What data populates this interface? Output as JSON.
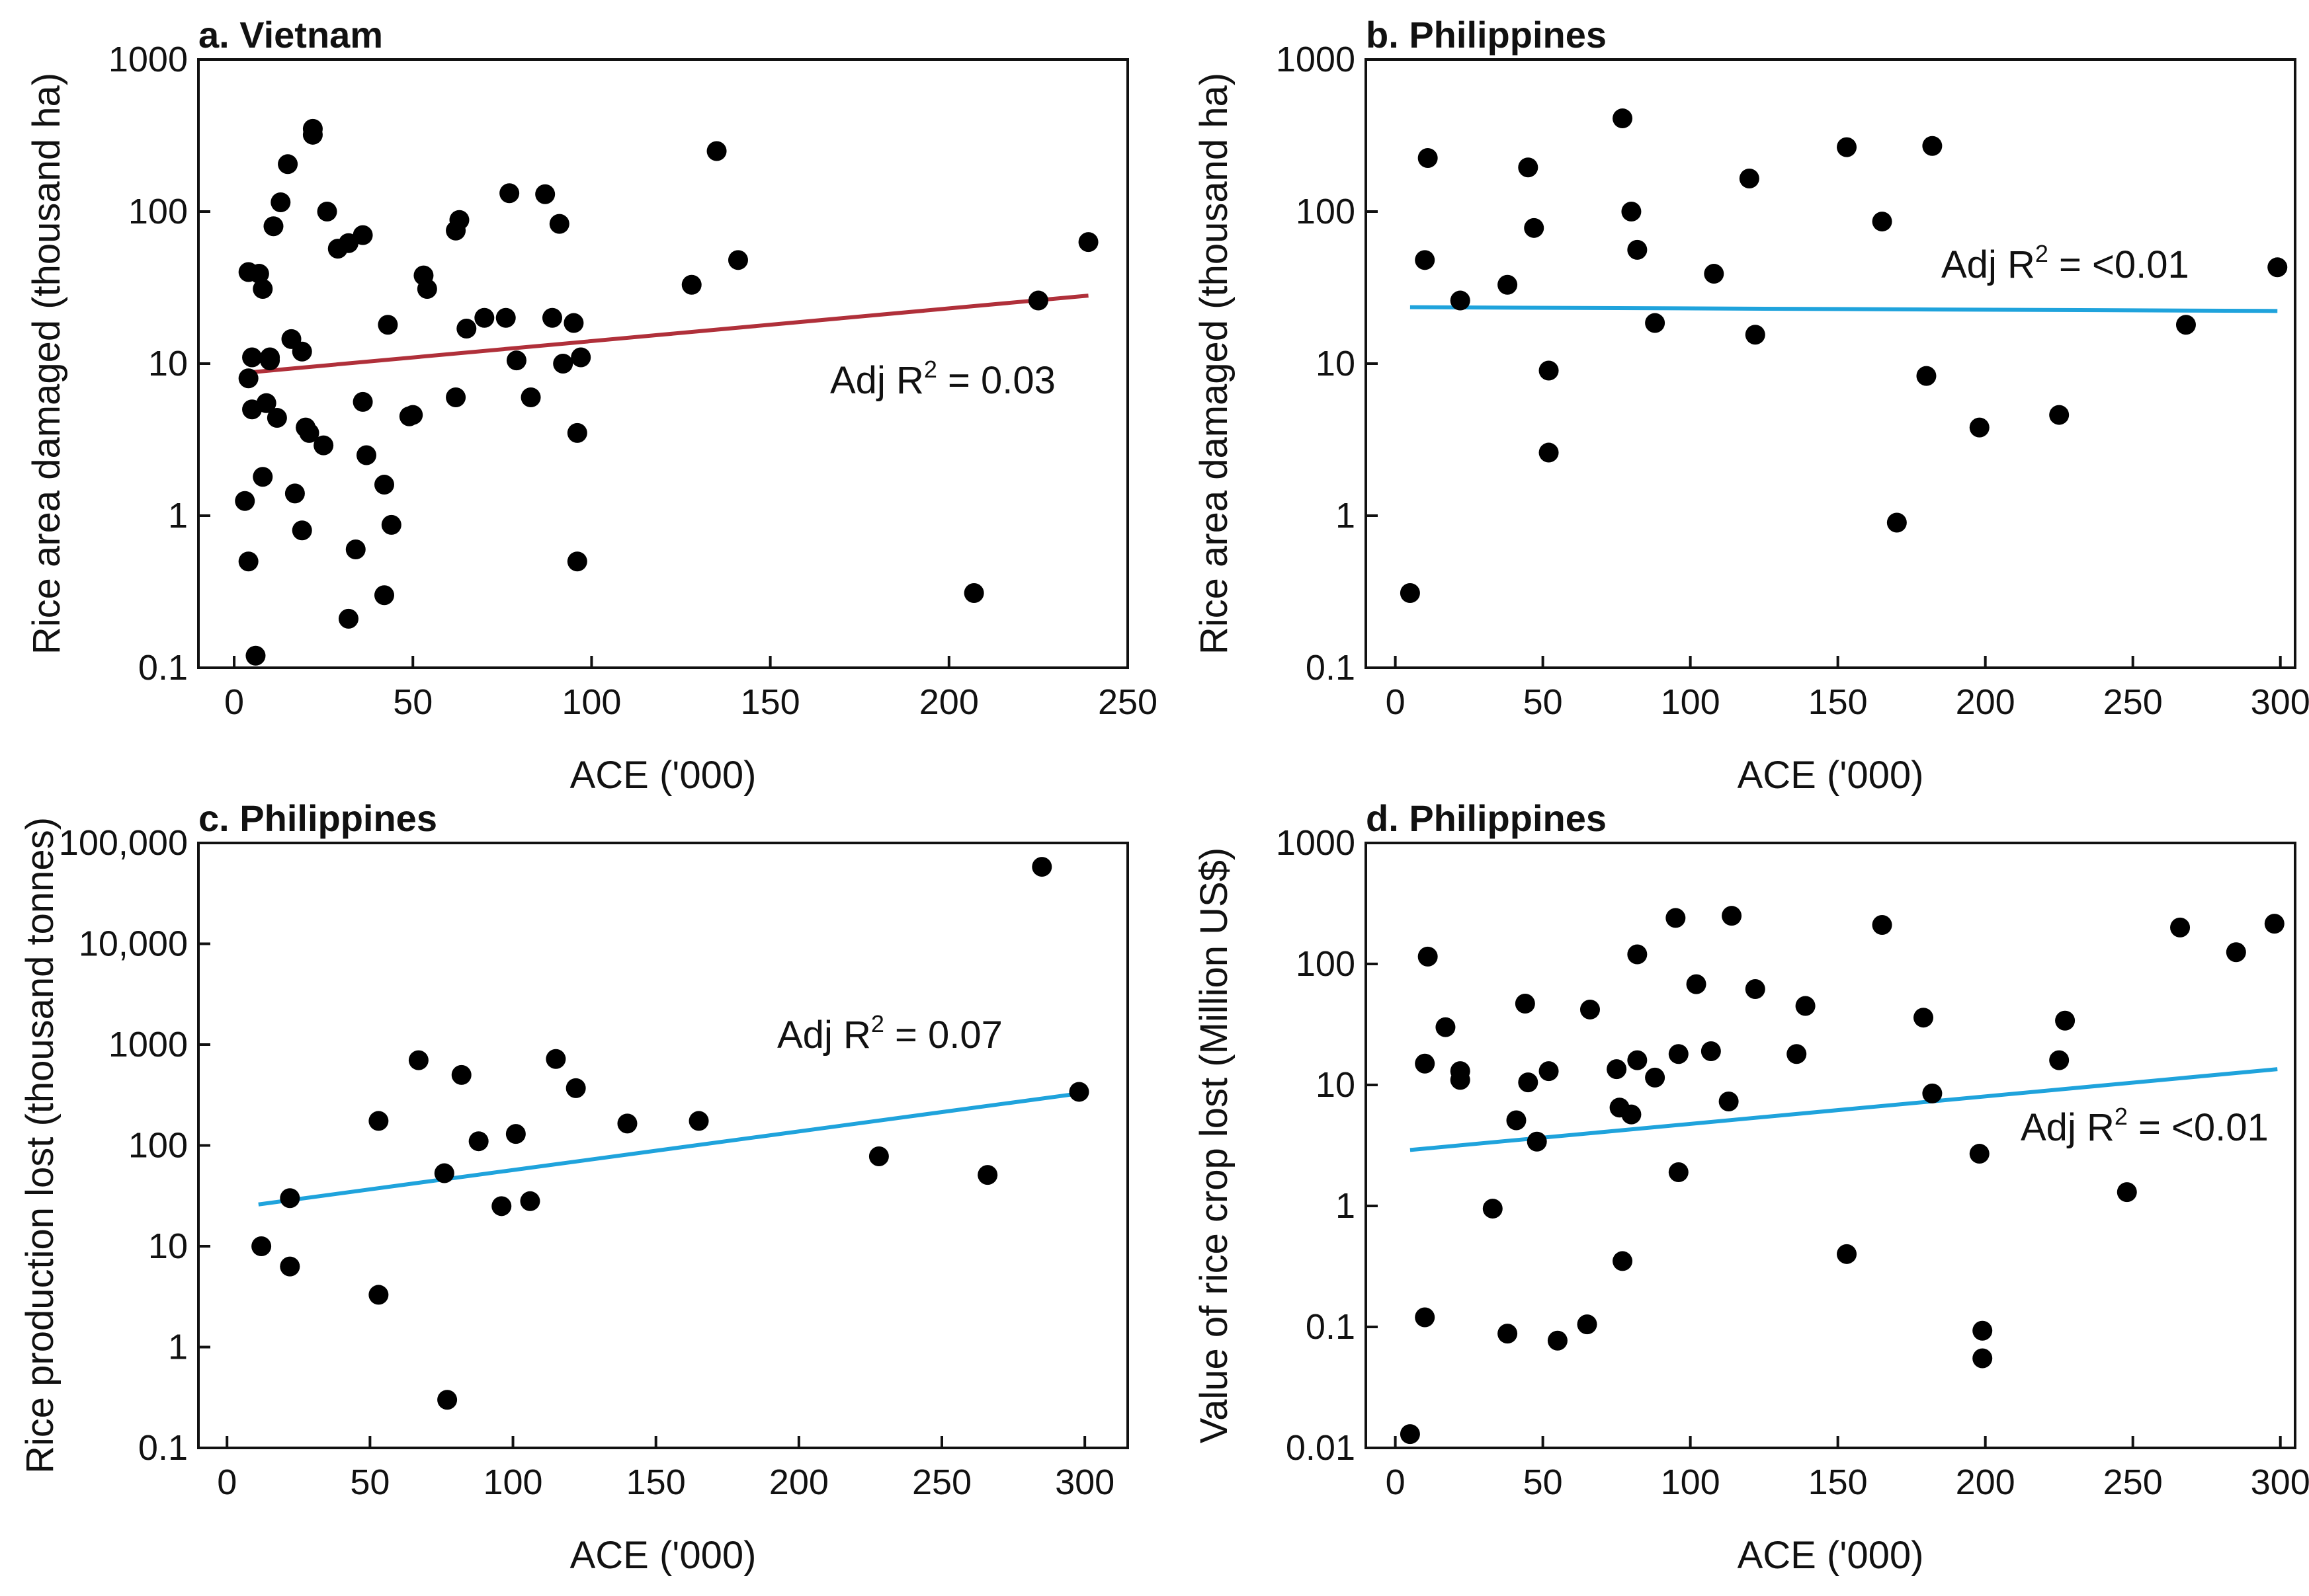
{
  "chart_data": [
    {
      "type": "scatter",
      "title": "a. Vietnam",
      "xlabel": "ACE ('000)",
      "ylabel": "Rice area damaged (thousand ha)",
      "xlim": [
        -10,
        250
      ],
      "ylim": [
        0.1,
        1000
      ],
      "yscale": "log",
      "xticks": [
        0,
        50,
        100,
        150,
        200,
        250
      ],
      "yticks": [
        0.1,
        1,
        10,
        100,
        1000
      ],
      "ytick_labels": [
        "0.1",
        "1",
        "10",
        "100",
        "1000"
      ],
      "annotation": {
        "text": "Adj R",
        "sup": "2",
        "suffix": " = 0.03"
      },
      "trend": {
        "color": "#b0303a",
        "x": [
          3,
          239
        ],
        "y": [
          8.7,
          28
        ]
      },
      "points": [
        [
          3,
          1.25
        ],
        [
          4,
          8
        ],
        [
          4,
          0.5
        ],
        [
          4,
          40
        ],
        [
          5,
          5
        ],
        [
          5,
          11
        ],
        [
          6,
          0.12
        ],
        [
          7,
          39
        ],
        [
          8,
          31
        ],
        [
          8,
          1.8
        ],
        [
          9,
          5.5
        ],
        [
          10,
          11
        ],
        [
          10,
          10.5
        ],
        [
          11,
          80
        ],
        [
          12,
          4.4
        ],
        [
          13,
          115
        ],
        [
          15,
          205
        ],
        [
          16,
          14.5
        ],
        [
          17,
          1.4
        ],
        [
          19,
          0.8
        ],
        [
          19,
          12
        ],
        [
          20,
          3.8
        ],
        [
          21,
          3.5
        ],
        [
          22,
          350
        ],
        [
          22,
          320
        ],
        [
          25,
          2.9
        ],
        [
          26,
          100
        ],
        [
          29,
          57
        ],
        [
          32,
          0.21
        ],
        [
          32,
          62
        ],
        [
          34,
          0.6
        ],
        [
          36,
          70
        ],
        [
          36,
          5.6
        ],
        [
          37,
          2.5
        ],
        [
          42,
          1.6
        ],
        [
          42,
          0.3
        ],
        [
          43,
          18
        ],
        [
          44,
          0.87
        ],
        [
          49,
          4.5
        ],
        [
          50,
          4.6
        ],
        [
          53,
          38
        ],
        [
          54,
          31
        ],
        [
          62,
          6
        ],
        [
          62,
          75
        ],
        [
          63,
          88
        ],
        [
          65,
          17
        ],
        [
          70,
          20
        ],
        [
          76,
          20
        ],
        [
          77,
          132
        ],
        [
          79,
          10.5
        ],
        [
          83,
          6
        ],
        [
          87,
          130
        ],
        [
          89,
          20
        ],
        [
          91,
          83
        ],
        [
          92,
          10
        ],
        [
          95,
          18.5
        ],
        [
          96,
          3.5
        ],
        [
          96,
          0.5
        ],
        [
          97,
          11
        ],
        [
          128,
          33
        ],
        [
          135,
          250
        ],
        [
          141,
          48
        ],
        [
          207,
          0.31
        ],
        [
          225,
          26
        ],
        [
          239,
          63
        ]
      ]
    },
    {
      "type": "scatter",
      "title": "b. Philippines",
      "xlabel": "ACE ('000)",
      "ylabel": "Rice area damaged (thousand ha)",
      "xlim": [
        -10,
        305
      ],
      "ylim": [
        0.1,
        1000
      ],
      "yscale": "log",
      "xticks": [
        0,
        50,
        100,
        150,
        200,
        250,
        300
      ],
      "yticks": [
        0.1,
        1,
        10,
        100,
        1000
      ],
      "ytick_labels": [
        "0.1",
        "1",
        "10",
        "100",
        "1000"
      ],
      "annotation": {
        "text": "Adj R",
        "sup": "2",
        "suffix": " = <0.01"
      },
      "trend": {
        "color": "#1fa3dc",
        "x": [
          5,
          299
        ],
        "y": [
          23.5,
          22.2
        ]
      },
      "points": [
        [
          5,
          0.31
        ],
        [
          10,
          48
        ],
        [
          11,
          225
        ],
        [
          22,
          26
        ],
        [
          38,
          33
        ],
        [
          45,
          195
        ],
        [
          47,
          78
        ],
        [
          52,
          9
        ],
        [
          52,
          2.6
        ],
        [
          77,
          410
        ],
        [
          80,
          100
        ],
        [
          82,
          56
        ],
        [
          88,
          18.5
        ],
        [
          108,
          39
        ],
        [
          120,
          165
        ],
        [
          122,
          15.5
        ],
        [
          153,
          265
        ],
        [
          165,
          86
        ],
        [
          170,
          0.9
        ],
        [
          180,
          8.3
        ],
        [
          182,
          270
        ],
        [
          198,
          3.8
        ],
        [
          225,
          4.6
        ],
        [
          268,
          18
        ],
        [
          299,
          43
        ]
      ]
    },
    {
      "type": "scatter",
      "title": "c. Philippines",
      "xlabel": "ACE ('000)",
      "ylabel": "Rice production lost (thousand tonnes)",
      "xlim": [
        -10,
        315
      ],
      "ylim": [
        0.1,
        100000
      ],
      "yscale": "log",
      "xticks": [
        0,
        50,
        100,
        150,
        200,
        250,
        300
      ],
      "yticks": [
        0.1,
        1,
        10,
        100,
        1000,
        10000,
        100000
      ],
      "ytick_labels": [
        "0.1",
        "1",
        "10",
        "100",
        "1000",
        "10,000",
        "100,000"
      ],
      "annotation": {
        "text": "Adj R",
        "sup": "2",
        "suffix": " = 0.07"
      },
      "trend": {
        "color": "#1fa3dc",
        "x": [
          11,
          299
        ],
        "y": [
          26,
          330
        ]
      },
      "points": [
        [
          12,
          10
        ],
        [
          22,
          6.3
        ],
        [
          22,
          30
        ],
        [
          53,
          3.3
        ],
        [
          53,
          175
        ],
        [
          67,
          700
        ],
        [
          76,
          53
        ],
        [
          77,
          0.3
        ],
        [
          82,
          500
        ],
        [
          88,
          110
        ],
        [
          96,
          25
        ],
        [
          101,
          130
        ],
        [
          106,
          28
        ],
        [
          115,
          720
        ],
        [
          122,
          370
        ],
        [
          140,
          165
        ],
        [
          165,
          175
        ],
        [
          228,
          78
        ],
        [
          266,
          51
        ],
        [
          285,
          58000
        ],
        [
          298,
          340
        ]
      ]
    },
    {
      "type": "scatter",
      "title": "d. Philippines",
      "xlabel": "ACE ('000)",
      "ylabel": "Value of rice crop lost (Million US$)",
      "xlim": [
        -10,
        305
      ],
      "ylim": [
        0.01,
        1000
      ],
      "yscale": "log",
      "xticks": [
        0,
        50,
        100,
        150,
        200,
        250,
        300
      ],
      "yticks": [
        0.01,
        0.1,
        1,
        10,
        100,
        1000
      ],
      "ytick_labels": [
        "0.01",
        "0.1",
        "1",
        "10",
        "100",
        "1000"
      ],
      "annotation": {
        "text": "Adj R",
        "sup": "2",
        "suffix": " = <0.01"
      },
      "trend": {
        "color": "#1fa3dc",
        "x": [
          5,
          299
        ],
        "y": [
          2.9,
          13.5
        ]
      },
      "points": [
        [
          5,
          0.013
        ],
        [
          10,
          0.12
        ],
        [
          10,
          15
        ],
        [
          11,
          115
        ],
        [
          17,
          30
        ],
        [
          22,
          13
        ],
        [
          22,
          11
        ],
        [
          33,
          0.95
        ],
        [
          38,
          0.088
        ],
        [
          41,
          5.1
        ],
        [
          44,
          47
        ],
        [
          45,
          10.5
        ],
        [
          48,
          3.4
        ],
        [
          52,
          13
        ],
        [
          55,
          0.077
        ],
        [
          65,
          0.105
        ],
        [
          66,
          42
        ],
        [
          75,
          13.5
        ],
        [
          76,
          6.5
        ],
        [
          77,
          0.35
        ],
        [
          80,
          5.7
        ],
        [
          82,
          16
        ],
        [
          82,
          120
        ],
        [
          88,
          11.5
        ],
        [
          95,
          240
        ],
        [
          96,
          18
        ],
        [
          96,
          1.9
        ],
        [
          102,
          68
        ],
        [
          107,
          19
        ],
        [
          113,
          7.3
        ],
        [
          114,
          250
        ],
        [
          122,
          62
        ],
        [
          136,
          18
        ],
        [
          139,
          45
        ],
        [
          153,
          0.4
        ],
        [
          165,
          210
        ],
        [
          179,
          36
        ],
        [
          182,
          8.5
        ],
        [
          198,
          2.7
        ],
        [
          199,
          0.093
        ],
        [
          199,
          0.055
        ],
        [
          225,
          16
        ],
        [
          227,
          34
        ],
        [
          248,
          1.3
        ],
        [
          266,
          200
        ],
        [
          285,
          125
        ],
        [
          298,
          215
        ]
      ]
    }
  ]
}
